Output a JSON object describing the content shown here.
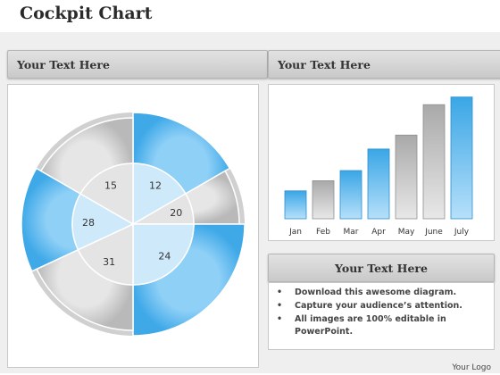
{
  "title": "Cockpit Chart",
  "headers": {
    "left": "Your Text Here",
    "right_top": "Your Text Here",
    "right_bottom": "Your Text Here"
  },
  "bullets": [
    "Download this awesome diagram.",
    "Capture your audience’s attention.",
    "All images are 100% editable in PowerPoint."
  ],
  "logo_text": "Your Logo",
  "colors": {
    "blue": "#3fa9e8",
    "light_blue": "#cde9fa",
    "gray": "#b9b9b9",
    "light_gray": "#e4e4e4"
  },
  "chart_data": [
    {
      "type": "pie",
      "categories": [
        "12",
        "20",
        "24",
        "31",
        "28",
        "15"
      ],
      "values": [
        12,
        20,
        24,
        31,
        28,
        15
      ],
      "title": "",
      "note": "ring with highlighted sectors"
    },
    {
      "type": "bar",
      "categories": [
        "Jan",
        "Feb",
        "Mar",
        "Apr",
        "May",
        "June",
        "July"
      ],
      "values": [
        22,
        30,
        38,
        55,
        66,
        90,
        96
      ],
      "title": "",
      "xlabel": "",
      "ylabel": "",
      "ylim": [
        0,
        100
      ],
      "grid": false,
      "bar_colors": [
        "blue",
        "gray",
        "blue",
        "blue",
        "gray",
        "gray",
        "blue"
      ]
    }
  ]
}
